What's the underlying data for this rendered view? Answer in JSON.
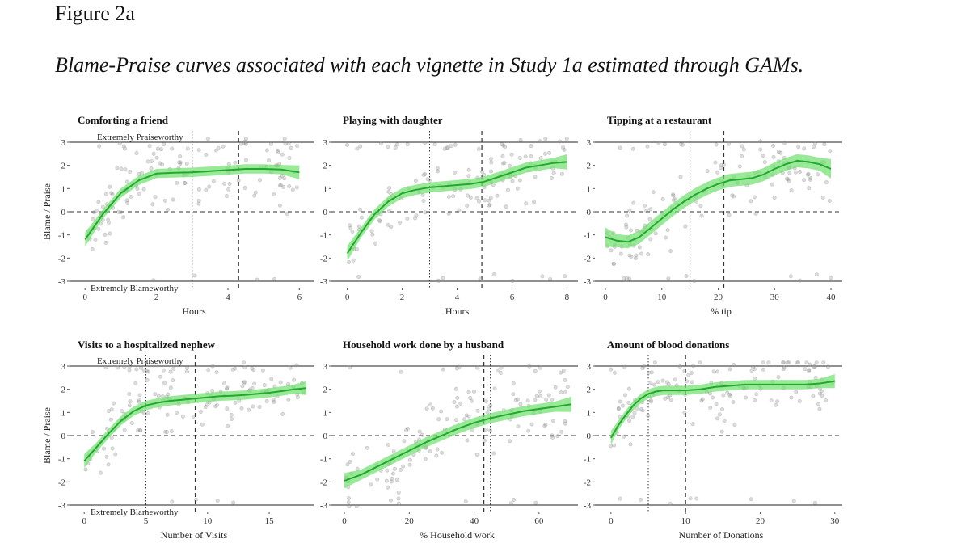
{
  "figure": {
    "label": "Figure 2a",
    "caption": "Blame-Praise curves associated with each vignette in Study 1a estimated through GAMs."
  },
  "colors": {
    "curve": "#22a82e",
    "band": "#6ee06e",
    "points": "#9a9a9a"
  },
  "chart_data": [
    {
      "type": "line",
      "title": "Comforting a friend",
      "xlabel": "Hours",
      "ylabel": "Blame / Praise",
      "xlim": [
        -0.3,
        6.4
      ],
      "ylim": [
        -3,
        3
      ],
      "xticks": [
        0,
        2,
        4,
        6
      ],
      "xtick_labels": [
        "0",
        "2",
        "4",
        "6"
      ],
      "yticks": [
        -3,
        -2,
        -1,
        0,
        1,
        2,
        3
      ],
      "ytick_labels": [
        "-3",
        "-2",
        "-1",
        "0",
        "1",
        "2",
        "3"
      ],
      "top_label": "Extremely Praiseworthy",
      "bottom_label": "Extremely Blameworthy",
      "vline_dotted": 3.0,
      "vline_dashed": 4.3,
      "curve": {
        "x": [
          0,
          0.5,
          1,
          1.5,
          2,
          2.5,
          3,
          3.5,
          4,
          4.5,
          5,
          5.5,
          6
        ],
        "y": [
          -1.2,
          -0.1,
          0.8,
          1.35,
          1.65,
          1.68,
          1.7,
          1.75,
          1.8,
          1.85,
          1.85,
          1.82,
          1.7
        ]
      },
      "band_halfwidth": 0.2
    },
    {
      "type": "line",
      "title": "Playing with daughter",
      "xlabel": "Hours",
      "ylabel": "",
      "xlim": [
        -0.4,
        8.4
      ],
      "ylim": [
        -3,
        3
      ],
      "xticks": [
        0,
        2,
        4,
        6,
        8
      ],
      "xtick_labels": [
        "0",
        "2",
        "4",
        "6",
        "8"
      ],
      "yticks": [
        -3,
        -2,
        -1,
        0,
        1,
        2,
        3
      ],
      "ytick_labels": [
        "-3",
        "-2",
        "-1",
        "0",
        "1",
        "2",
        "3"
      ],
      "top_label": "",
      "bottom_label": "",
      "vline_dotted": 3.0,
      "vline_dashed": 4.9,
      "curve": {
        "x": [
          0,
          0.5,
          1,
          1.5,
          2,
          2.5,
          3,
          3.5,
          4,
          4.5,
          5,
          5.5,
          6,
          6.5,
          7,
          7.5,
          8
        ],
        "y": [
          -1.8,
          -0.9,
          -0.1,
          0.45,
          0.8,
          0.95,
          1.05,
          1.1,
          1.15,
          1.2,
          1.3,
          1.5,
          1.7,
          1.9,
          2.0,
          2.1,
          2.15
        ]
      },
      "band_halfwidth": 0.22
    },
    {
      "type": "line",
      "title": "Tipping at a restaurant",
      "xlabel": "% tip",
      "ylabel": "",
      "xlim": [
        -1,
        42
      ],
      "ylim": [
        -3,
        3
      ],
      "xticks": [
        0,
        10,
        20,
        30,
        40
      ],
      "xtick_labels": [
        "0",
        "10",
        "20",
        "30",
        "40"
      ],
      "yticks": [
        -3,
        -2,
        -1,
        0,
        1,
        2,
        3
      ],
      "ytick_labels": [
        "-3",
        "-2",
        "-1",
        "0",
        "1",
        "2",
        "3"
      ],
      "top_label": "",
      "bottom_label": "",
      "vline_dotted": 15,
      "vline_dashed": 21,
      "curve": {
        "x": [
          0,
          2,
          4,
          6,
          8,
          10,
          12,
          14,
          16,
          18,
          20,
          22,
          24,
          26,
          28,
          30,
          32,
          34,
          36,
          38,
          40
        ],
        "y": [
          -1.1,
          -1.25,
          -1.3,
          -1.1,
          -0.7,
          -0.3,
          0.1,
          0.45,
          0.75,
          1.0,
          1.2,
          1.35,
          1.4,
          1.45,
          1.6,
          1.85,
          2.05,
          2.2,
          2.15,
          2.05,
          1.85
        ]
      },
      "band_halfwidth": 0.28
    },
    {
      "type": "line",
      "title": "Visits to a hospitalized nephew",
      "xlabel": "Number of Visits",
      "ylabel": "Blame / Praise",
      "xlim": [
        -0.8,
        18.6
      ],
      "ylim": [
        -3,
        3
      ],
      "xticks": [
        0,
        5,
        10,
        15
      ],
      "xtick_labels": [
        "0",
        "5",
        "10",
        "15"
      ],
      "yticks": [
        -3,
        -2,
        -1,
        0,
        1,
        2,
        3
      ],
      "ytick_labels": [
        "-3",
        "-2",
        "-1",
        "0",
        "1",
        "2",
        "3"
      ],
      "top_label": "Extremely Praiseworthy",
      "bottom_label": "Extremely Blameworthy",
      "vline_dotted": 5,
      "vline_dashed": 9,
      "curve": {
        "x": [
          0,
          1,
          2,
          3,
          4,
          5,
          6,
          7,
          8,
          9,
          10,
          11,
          12,
          13,
          14,
          15,
          16,
          17,
          18
        ],
        "y": [
          -1.1,
          -0.5,
          0.1,
          0.65,
          1.05,
          1.3,
          1.42,
          1.5,
          1.55,
          1.6,
          1.65,
          1.7,
          1.72,
          1.75,
          1.8,
          1.85,
          1.92,
          2.0,
          2.05
        ]
      },
      "band_halfwidth": 0.2
    },
    {
      "type": "line",
      "title": "Household work done by a husband",
      "xlabel": "% Household work",
      "ylabel": "",
      "xlim": [
        -2.5,
        72
      ],
      "ylim": [
        -3,
        3
      ],
      "xticks": [
        0,
        20,
        40,
        60
      ],
      "xtick_labels": [
        "0",
        "20",
        "40",
        "60"
      ],
      "yticks": [
        -3,
        -2,
        -1,
        0,
        1,
        2,
        3
      ],
      "ytick_labels": [
        "-3",
        "-2",
        "-1",
        "0",
        "1",
        "2",
        "3"
      ],
      "top_label": "",
      "bottom_label": "",
      "vline_dotted": 45,
      "vline_dashed": 43,
      "curve": {
        "x": [
          0,
          5,
          10,
          15,
          20,
          25,
          30,
          35,
          40,
          45,
          50,
          55,
          60,
          65,
          70
        ],
        "y": [
          -1.95,
          -1.7,
          -1.35,
          -1.0,
          -0.65,
          -0.3,
          0.0,
          0.3,
          0.55,
          0.75,
          0.9,
          1.05,
          1.15,
          1.25,
          1.35
        ]
      },
      "band_halfwidth": 0.22
    },
    {
      "type": "line",
      "title": "Amount of blood donations",
      "xlabel": "Number of Donations",
      "ylabel": "",
      "xlim": [
        -1.5,
        31
      ],
      "ylim": [
        -3,
        3
      ],
      "xticks": [
        0,
        10,
        20,
        30
      ],
      "xtick_labels": [
        "0",
        "10",
        "20",
        "30"
      ],
      "yticks": [
        -3,
        -2,
        -1,
        0,
        1,
        2,
        3
      ],
      "ytick_labels": [
        "-3",
        "-2",
        "-1",
        "0",
        "1",
        "2",
        "3"
      ],
      "top_label": "",
      "bottom_label": "",
      "vline_dotted": 5,
      "vline_dashed": 10,
      "curve": {
        "x": [
          0,
          1,
          2,
          3,
          4,
          5,
          6,
          7,
          8,
          10,
          12,
          14,
          16,
          18,
          20,
          22,
          24,
          26,
          28,
          30
        ],
        "y": [
          -0.1,
          0.45,
          0.9,
          1.3,
          1.6,
          1.8,
          1.9,
          1.95,
          1.95,
          1.95,
          2.0,
          2.1,
          2.15,
          2.2,
          2.2,
          2.2,
          2.2,
          2.2,
          2.25,
          2.35
        ]
      },
      "band_halfwidth": 0.2
    }
  ]
}
